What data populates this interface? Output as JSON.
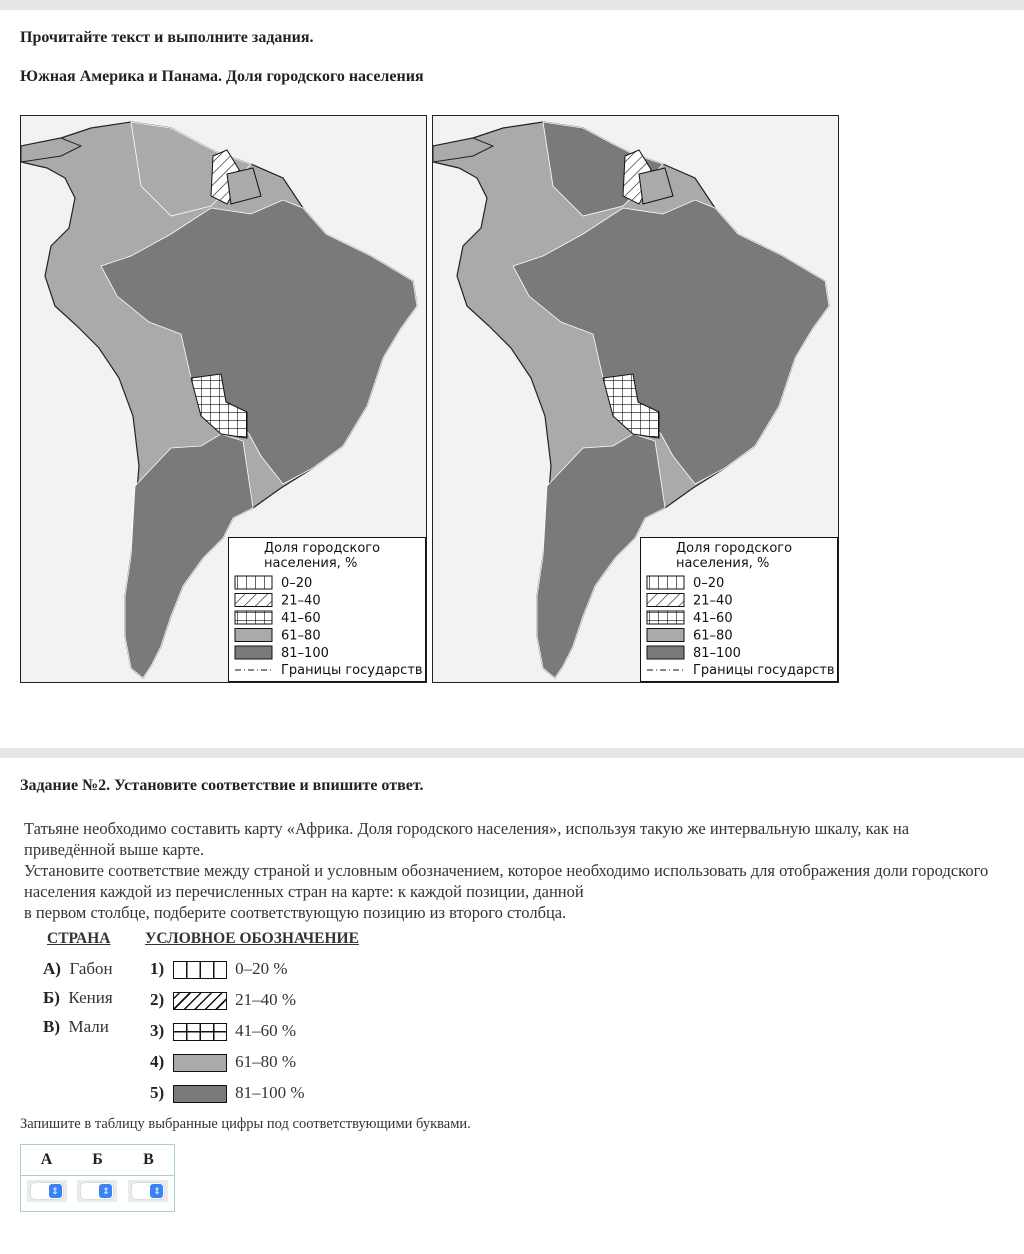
{
  "instruction": "Прочитайте текст и выполните задания.",
  "map_title": "Южная Америка и Панама. Доля городского населения",
  "map_legend": {
    "title1": "Доля городского",
    "title2": "населения, %",
    "items": [
      "0–20",
      "21–40",
      "41–60",
      "61–80",
      "81–100"
    ],
    "borders": "Границы государств"
  },
  "colors": {
    "light": "#aaaaaa",
    "dark": "#7a7a7a"
  },
  "task": {
    "title": "Задание №2. Установите соответствие и впишите ответ.",
    "p1": "Татьяне необходимо составить карту «Африка. Доля городского населения», используя такую же интервальную шкалу, как на приведённой выше карте.",
    "p2": "Установите соответствие между страной и условным обозначением, которое необходимо использовать для отображения доли городского населения каждой из перечисленных стран на карте: к каждой позиции, данной",
    "p3": "в первом столбце, подберите соответствующую позицию из второго столбца.",
    "col1": "СТРАНА",
    "col2": "УСЛОВНОЕ ОБОЗНАЧЕНИЕ",
    "countries": [
      {
        "letter": "А)",
        "name": "Габон"
      },
      {
        "letter": "Б)",
        "name": "Кения"
      },
      {
        "letter": "В)",
        "name": "Мали"
      }
    ],
    "symbols": [
      {
        "num": "1)",
        "label": "0–20 %"
      },
      {
        "num": "2)",
        "label": "21–40 %"
      },
      {
        "num": "3)",
        "label": "41–60 %"
      },
      {
        "num": "4)",
        "label": "61–80 %"
      },
      {
        "num": "5)",
        "label": "81–100 %"
      }
    ],
    "write": "Запишите в таблицу выбранные цифры под соответствующими буквами.",
    "answer_headers": [
      "А",
      "Б",
      "В"
    ]
  }
}
